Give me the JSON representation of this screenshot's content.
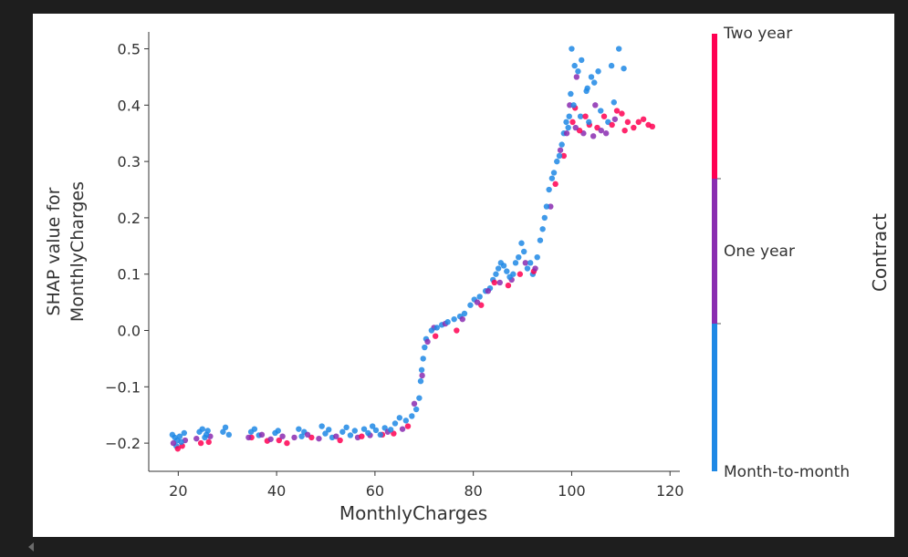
{
  "chart_data": {
    "type": "scatter",
    "title": "",
    "xlabel": "MonthlyCharges",
    "ylabel": [
      "SHAP value for",
      "MonthlyCharges"
    ],
    "xlim": [
      14,
      122
    ],
    "ylim": [
      -0.25,
      0.53
    ],
    "xticks": [
      20,
      40,
      60,
      80,
      100,
      120
    ],
    "xtick_labels": [
      "20",
      "40",
      "60",
      "80",
      "100",
      "120"
    ],
    "yticks": [
      -0.2,
      -0.1,
      0.0,
      0.1,
      0.2,
      0.3,
      0.4,
      0.5
    ],
    "ytick_labels": [
      "−0.2",
      "−0.1",
      "0.0",
      "0.1",
      "0.2",
      "0.3",
      "0.4",
      "0.5"
    ],
    "grid": false,
    "colorbar": {
      "title": "Contract",
      "labels": [
        "Two year",
        "One year",
        "Month-to-month"
      ],
      "colors": [
        "#ff0052",
        "#8a2cb0",
        "#1e88e5"
      ]
    },
    "series": [
      {
        "name": "Month-to-month",
        "color": "#1e88e5",
        "points": [
          [
            18.8,
            -0.185
          ],
          [
            19.3,
            -0.19
          ],
          [
            19.8,
            -0.195
          ],
          [
            20.3,
            -0.188
          ],
          [
            20.6,
            -0.198
          ],
          [
            21.2,
            -0.182
          ],
          [
            19.6,
            -0.205
          ],
          [
            24.3,
            -0.18
          ],
          [
            24.9,
            -0.175
          ],
          [
            25.4,
            -0.19
          ],
          [
            26.0,
            -0.178
          ],
          [
            25.7,
            -0.185
          ],
          [
            29.1,
            -0.18
          ],
          [
            29.6,
            -0.172
          ],
          [
            30.3,
            -0.185
          ],
          [
            34.8,
            -0.18
          ],
          [
            35.5,
            -0.175
          ],
          [
            36.4,
            -0.186
          ],
          [
            39.7,
            -0.182
          ],
          [
            40.3,
            -0.178
          ],
          [
            44.5,
            -0.175
          ],
          [
            45.1,
            -0.188
          ],
          [
            45.6,
            -0.18
          ],
          [
            49.2,
            -0.17
          ],
          [
            49.9,
            -0.183
          ],
          [
            50.6,
            -0.176
          ],
          [
            51.3,
            -0.19
          ],
          [
            53.4,
            -0.18
          ],
          [
            54.2,
            -0.172
          ],
          [
            55.0,
            -0.186
          ],
          [
            55.9,
            -0.178
          ],
          [
            57.8,
            -0.175
          ],
          [
            58.6,
            -0.182
          ],
          [
            59.5,
            -0.17
          ],
          [
            60.2,
            -0.177
          ],
          [
            61.1,
            -0.185
          ],
          [
            62.0,
            -0.173
          ],
          [
            63.2,
            -0.176
          ],
          [
            64.1,
            -0.165
          ],
          [
            65.0,
            -0.155
          ],
          [
            66.3,
            -0.16
          ],
          [
            67.5,
            -0.152
          ],
          [
            68.4,
            -0.14
          ],
          [
            69.0,
            -0.12
          ],
          [
            69.3,
            -0.09
          ],
          [
            69.5,
            -0.07
          ],
          [
            69.8,
            -0.05
          ],
          [
            70.1,
            -0.03
          ],
          [
            70.4,
            -0.015
          ],
          [
            71.5,
            0.0
          ],
          [
            72.6,
            0.005
          ],
          [
            73.6,
            0.01
          ],
          [
            74.8,
            0.015
          ],
          [
            76.1,
            0.02
          ],
          [
            77.3,
            0.025
          ],
          [
            78.2,
            0.03
          ],
          [
            79.4,
            0.045
          ],
          [
            80.2,
            0.055
          ],
          [
            81.3,
            0.06
          ],
          [
            82.5,
            0.07
          ],
          [
            83.4,
            0.075
          ],
          [
            84.0,
            0.09
          ],
          [
            84.6,
            0.1
          ],
          [
            85.1,
            0.11
          ],
          [
            85.6,
            0.12
          ],
          [
            86.2,
            0.115
          ],
          [
            86.8,
            0.105
          ],
          [
            87.4,
            0.095
          ],
          [
            88.1,
            0.1
          ],
          [
            88.6,
            0.12
          ],
          [
            89.2,
            0.13
          ],
          [
            89.8,
            0.155
          ],
          [
            90.3,
            0.14
          ],
          [
            91.0,
            0.11
          ],
          [
            91.6,
            0.12
          ],
          [
            92.1,
            0.1
          ],
          [
            93.0,
            0.13
          ],
          [
            93.6,
            0.16
          ],
          [
            94.1,
            0.18
          ],
          [
            94.5,
            0.2
          ],
          [
            94.9,
            0.22
          ],
          [
            95.4,
            0.25
          ],
          [
            96.0,
            0.27
          ],
          [
            96.4,
            0.28
          ],
          [
            97.0,
            0.3
          ],
          [
            97.5,
            0.31
          ],
          [
            98.0,
            0.33
          ],
          [
            98.4,
            0.35
          ],
          [
            98.9,
            0.37
          ],
          [
            99.3,
            0.36
          ],
          [
            99.5,
            0.38
          ],
          [
            99.8,
            0.42
          ],
          [
            100.0,
            0.5
          ],
          [
            100.6,
            0.47
          ],
          [
            101.3,
            0.46
          ],
          [
            102.0,
            0.48
          ],
          [
            103.2,
            0.43
          ],
          [
            104.0,
            0.45
          ],
          [
            104.6,
            0.44
          ],
          [
            105.4,
            0.46
          ],
          [
            100.4,
            0.4
          ],
          [
            101.8,
            0.38
          ],
          [
            103.5,
            0.37
          ],
          [
            105.9,
            0.39
          ],
          [
            107.4,
            0.37
          ],
          [
            108.6,
            0.405
          ],
          [
            109.6,
            0.5
          ],
          [
            110.6,
            0.465
          ],
          [
            108.1,
            0.47
          ],
          [
            103.0,
            0.425
          ]
        ]
      },
      {
        "name": "One year",
        "color": "#8a2cb0",
        "points": [
          [
            19.0,
            -0.2
          ],
          [
            21.4,
            -0.195
          ],
          [
            23.7,
            -0.192
          ],
          [
            26.5,
            -0.188
          ],
          [
            34.3,
            -0.19
          ],
          [
            37.0,
            -0.185
          ],
          [
            38.8,
            -0.193
          ],
          [
            41.2,
            -0.188
          ],
          [
            43.6,
            -0.19
          ],
          [
            46.3,
            -0.185
          ],
          [
            48.6,
            -0.192
          ],
          [
            52.1,
            -0.188
          ],
          [
            56.5,
            -0.19
          ],
          [
            59.0,
            -0.186
          ],
          [
            62.6,
            -0.18
          ],
          [
            65.6,
            -0.175
          ],
          [
            68.0,
            -0.13
          ],
          [
            69.6,
            -0.08
          ],
          [
            70.7,
            -0.02
          ],
          [
            72.0,
            0.005
          ],
          [
            74.3,
            0.012
          ],
          [
            77.8,
            0.02
          ],
          [
            80.8,
            0.05
          ],
          [
            83.0,
            0.07
          ],
          [
            85.4,
            0.085
          ],
          [
            87.8,
            0.09
          ],
          [
            90.6,
            0.12
          ],
          [
            92.6,
            0.11
          ],
          [
            95.7,
            0.22
          ],
          [
            97.7,
            0.32
          ],
          [
            99.0,
            0.35
          ],
          [
            99.6,
            0.4
          ],
          [
            100.8,
            0.36
          ],
          [
            102.4,
            0.35
          ],
          [
            104.4,
            0.345
          ],
          [
            106.0,
            0.355
          ],
          [
            107.0,
            0.35
          ],
          [
            108.8,
            0.375
          ],
          [
            101.0,
            0.45
          ],
          [
            104.8,
            0.4
          ]
        ]
      },
      {
        "name": "Two year",
        "color": "#ff0052",
        "points": [
          [
            19.9,
            -0.21
          ],
          [
            20.8,
            -0.205
          ],
          [
            24.6,
            -0.2
          ],
          [
            26.2,
            -0.198
          ],
          [
            34.9,
            -0.19
          ],
          [
            38.1,
            -0.196
          ],
          [
            40.5,
            -0.195
          ],
          [
            42.1,
            -0.2
          ],
          [
            47.1,
            -0.19
          ],
          [
            52.9,
            -0.195
          ],
          [
            57.3,
            -0.188
          ],
          [
            61.5,
            -0.185
          ],
          [
            63.8,
            -0.183
          ],
          [
            66.7,
            -0.17
          ],
          [
            72.3,
            -0.01
          ],
          [
            76.6,
            0.0
          ],
          [
            81.6,
            0.045
          ],
          [
            84.3,
            0.085
          ],
          [
            87.1,
            0.08
          ],
          [
            89.5,
            0.1
          ],
          [
            92.3,
            0.105
          ],
          [
            96.7,
            0.26
          ],
          [
            98.4,
            0.31
          ],
          [
            100.2,
            0.37
          ],
          [
            101.6,
            0.355
          ],
          [
            103.6,
            0.365
          ],
          [
            105.2,
            0.36
          ],
          [
            106.6,
            0.38
          ],
          [
            108.2,
            0.365
          ],
          [
            109.2,
            0.39
          ],
          [
            110.2,
            0.385
          ],
          [
            111.4,
            0.37
          ],
          [
            112.6,
            0.36
          ],
          [
            113.6,
            0.37
          ],
          [
            114.6,
            0.375
          ],
          [
            115.6,
            0.365
          ],
          [
            116.4,
            0.362
          ],
          [
            100.7,
            0.395
          ],
          [
            102.8,
            0.38
          ],
          [
            110.8,
            0.355
          ]
        ]
      }
    ]
  }
}
